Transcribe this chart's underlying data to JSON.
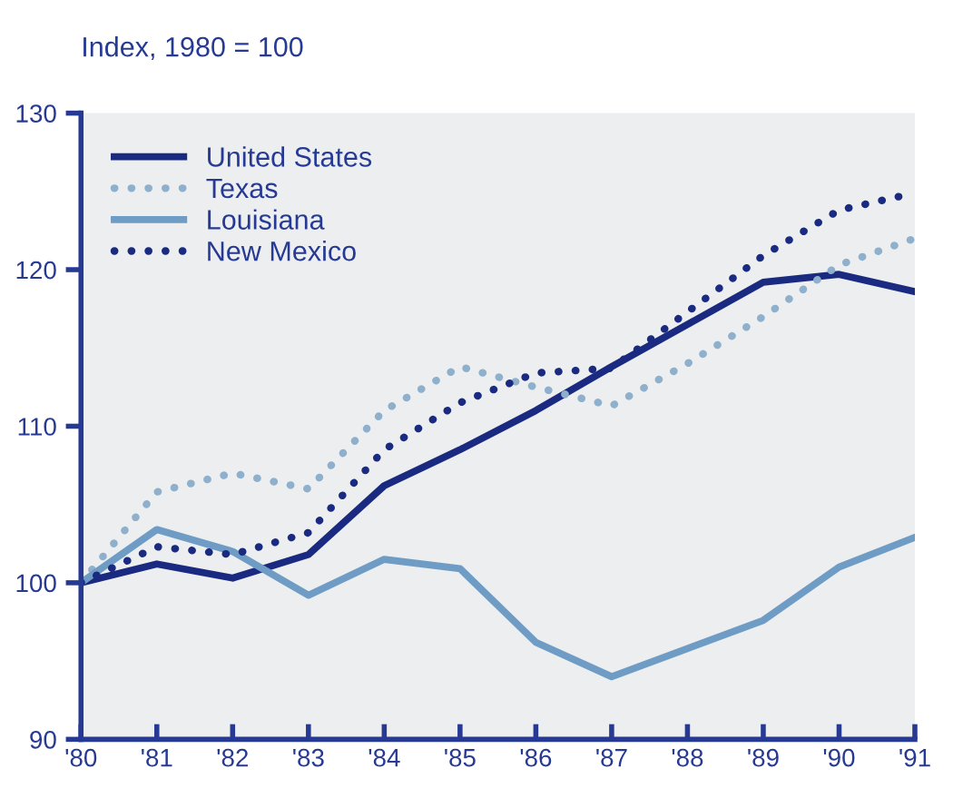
{
  "chart_data": {
    "type": "line",
    "ylabel": "Index, 1980 = 100",
    "categories": [
      "'80",
      "'81",
      "'82",
      "'83",
      "'84",
      "'85",
      "'86",
      "'87",
      "'88",
      "'89",
      "'90",
      "'91"
    ],
    "series": [
      {
        "name": "United States",
        "color": "#1a2a80",
        "line_style": "solid",
        "values": [
          100,
          101.2,
          100.3,
          101.8,
          106.2,
          108.5,
          111,
          113.8,
          116.5,
          119.2,
          119.7,
          118.6
        ]
      },
      {
        "name": "Texas",
        "color": "#8fb0cc",
        "line_style": "dotted",
        "values": [
          100,
          105.8,
          107,
          106,
          111,
          113.8,
          112.5,
          111.3,
          114,
          117,
          120.3,
          122
        ]
      },
      {
        "name": "Louisiana",
        "color": "#6e9cc4",
        "line_style": "solid",
        "values": [
          100,
          103.4,
          102,
          99.2,
          101.5,
          100.9,
          96.2,
          94,
          95.8,
          97.6,
          101,
          102.9
        ]
      },
      {
        "name": "New Mexico",
        "color": "#1a2a80",
        "line_style": "dotted",
        "values": [
          100,
          102.3,
          101.8,
          103.2,
          108.5,
          111.5,
          113.4,
          113.7,
          117.3,
          120.9,
          123.8,
          124.9
        ]
      }
    ],
    "ylim": [
      90,
      130
    ],
    "yticks": [
      90,
      100,
      110,
      120,
      130
    ],
    "grid": false,
    "legend": "top left"
  }
}
